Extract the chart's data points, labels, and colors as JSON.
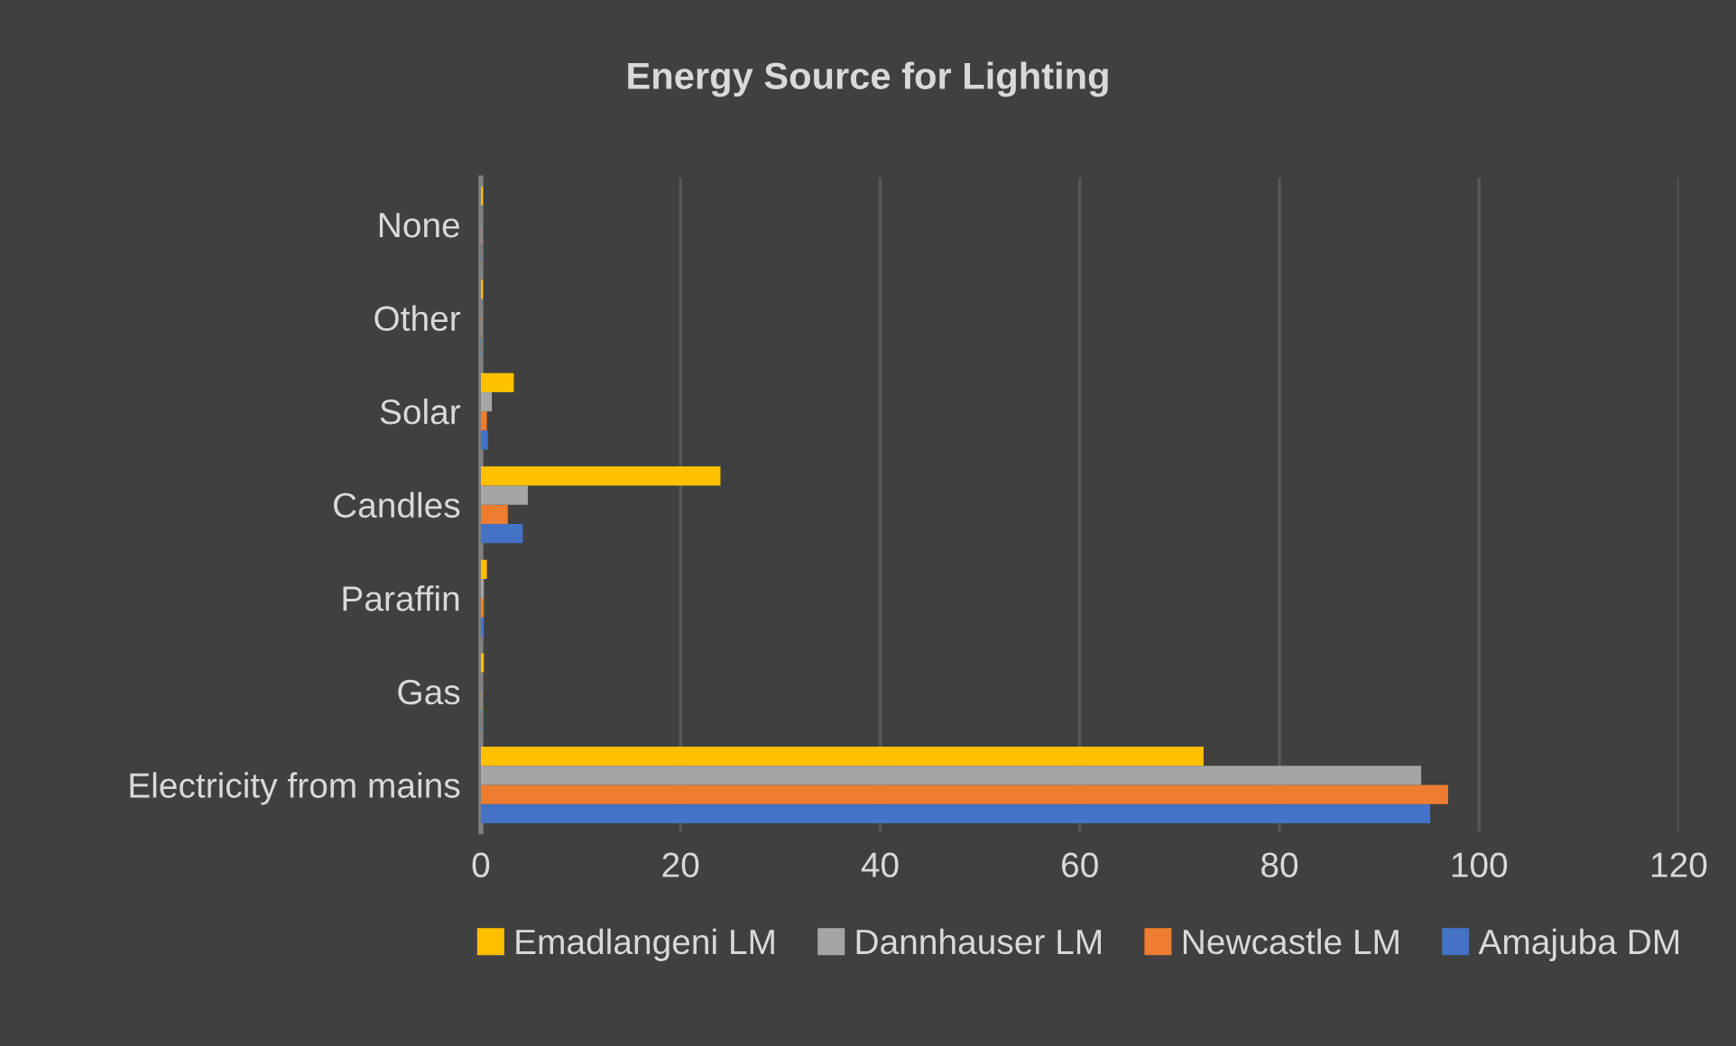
{
  "chart_data": {
    "type": "bar",
    "orientation": "horizontal",
    "title": "Energy Source for Lighting",
    "categories": [
      "None",
      "Other",
      "Solar",
      "Candles",
      "Paraffin",
      "Gas",
      "Electricity from mains"
    ],
    "series": [
      {
        "name": "Amajuba DM",
        "color": "#4472c4",
        "values": [
          0.1,
          0.1,
          0.7,
          4.2,
          0.3,
          0.1,
          95.1
        ]
      },
      {
        "name": "Newcastle LM",
        "color": "#ed7d31",
        "values": [
          0.1,
          0.1,
          0.6,
          2.7,
          0.3,
          0.1,
          96.9
        ]
      },
      {
        "name": "Dannhauser LM",
        "color": "#a5a5a5",
        "values": [
          null,
          null,
          1.1,
          4.7,
          0.3,
          null,
          94.2
        ]
      },
      {
        "name": "Emadlangeni LM",
        "color": "#ffc000",
        "values": [
          0.2,
          0.2,
          3.3,
          24.0,
          0.6,
          0.3,
          72.4
        ]
      }
    ],
    "xlim": [
      0,
      120
    ],
    "xticks": [
      0,
      20,
      40,
      60,
      80,
      100,
      120
    ],
    "grid": "x",
    "legend": "bottom"
  }
}
